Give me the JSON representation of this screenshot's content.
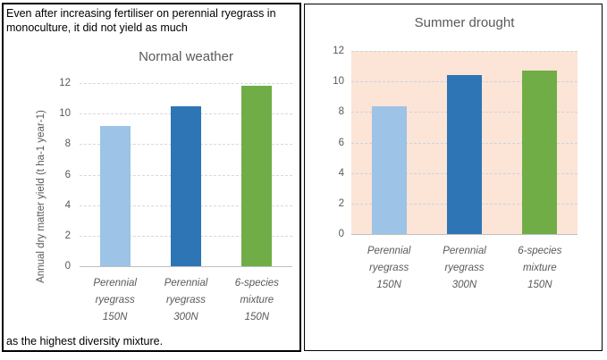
{
  "annotation": {
    "top": "Even after increasing fertiliser on perennial ryegrass in monoculture, it did not yield as much",
    "bottom": "as the highest diversity mixture."
  },
  "colors": {
    "bar_light_blue": "#9DC3E6",
    "bar_dark_blue": "#2E75B6",
    "bar_green": "#70AD47",
    "right_plot_background": "#FCE4D6",
    "text_gray": "#595959",
    "gridline_left": "#D9D9D9",
    "gridline_right": "#CBD4DE",
    "axis_line": "#BFBFBF",
    "panel_border": "#000000"
  },
  "chart_data": [
    {
      "type": "bar",
      "title": "Normal weather",
      "categories": [
        [
          "Perennial",
          "ryegrass",
          "150N"
        ],
        [
          "Perennial",
          "ryegrass",
          "300N"
        ],
        [
          "6-species",
          "mixture",
          "150N"
        ]
      ],
      "values": [
        9.2,
        10.5,
        11.8
      ],
      "bar_colors": [
        "#9DC3E6",
        "#2E75B6",
        "#70AD47"
      ],
      "xlabel": "",
      "ylabel": "Annual dry matter yield (t ha-1 year-1)",
      "ylim": [
        0,
        12
      ],
      "ytick_step": 2,
      "ytick_labels": [
        "0",
        "2",
        "4",
        "6",
        "8",
        "10",
        "12"
      ],
      "grid": true,
      "gridline_color": "#D9D9D9",
      "plot_background": "#FFFFFF",
      "legend": "none"
    },
    {
      "type": "bar",
      "title": "Summer drought",
      "categories": [
        [
          "Perennial",
          "ryegrass",
          "150N"
        ],
        [
          "Perennial",
          "ryegrass",
          "300N"
        ],
        [
          "6-species",
          "mixture",
          "150N"
        ]
      ],
      "values": [
        8.4,
        10.4,
        10.7
      ],
      "bar_colors": [
        "#9DC3E6",
        "#2E75B6",
        "#70AD47"
      ],
      "xlabel": "",
      "ylabel": "",
      "ylim": [
        0,
        12
      ],
      "ytick_step": 2,
      "ytick_labels": [
        "0",
        "2",
        "4",
        "6",
        "8",
        "10",
        "12"
      ],
      "grid": true,
      "gridline_color": "#CBD4DE",
      "plot_background": "#FCE4D6",
      "legend": "none"
    }
  ]
}
